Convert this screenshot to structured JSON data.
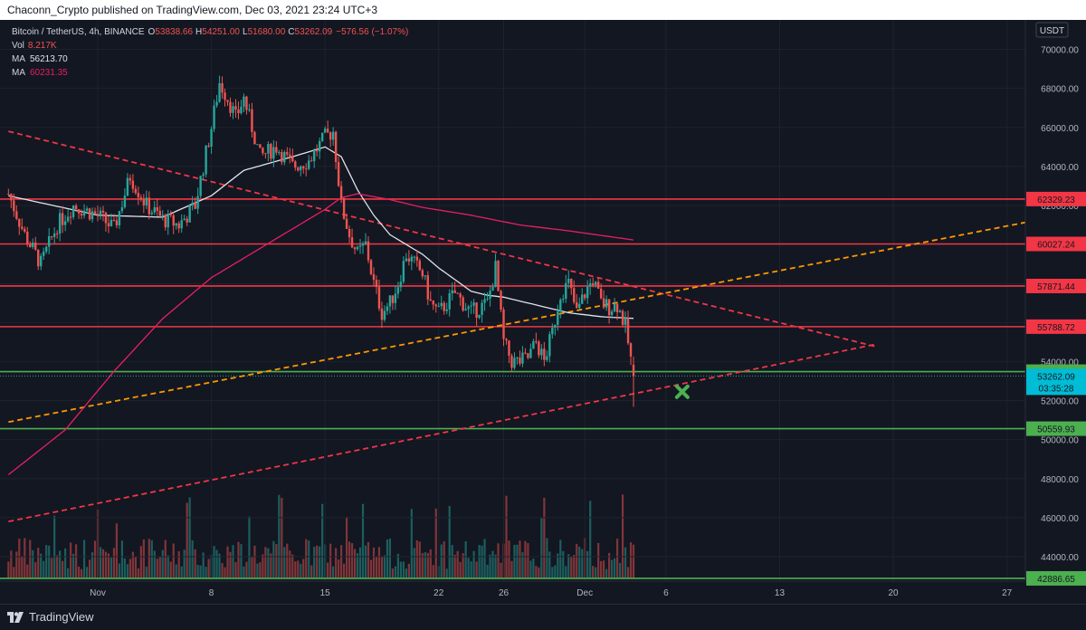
{
  "header": {
    "publisher_text": "Chaconn_Crypto published on TradingView.com, Dec 03, 2021 23:24 UTC+3"
  },
  "legend": {
    "symbol": "Bitcoin / TetherUS, 4h, BINANCE",
    "o_label": "O",
    "o_value": "53838.66",
    "h_label": "H",
    "h_value": "54251.00",
    "l_label": "L",
    "l_value": "51680.00",
    "c_label": "C",
    "c_value": "53262.09",
    "change": "−576.56 (−1.07%)",
    "vol_label": "Vol",
    "vol_value": "8.217K",
    "ma1_label": "MA",
    "ma1_value": "56213.70",
    "ma2_label": "MA",
    "ma2_value": "60231.35"
  },
  "currency": "USDT",
  "footer": {
    "brand": "TradingView"
  },
  "colors": {
    "background": "#131722",
    "up": "#26a69a",
    "down": "#ef5350",
    "resistance": "#f23645",
    "support": "#4caf50",
    "orange_trend": "#ff9800",
    "ma_white": "#e0e3eb",
    "ma_pink": "#e91e63",
    "marker": "#4caf50"
  },
  "chart_data": {
    "type": "candlestick",
    "timeframe": "4h",
    "y_range": [
      42500,
      71000
    ],
    "y_ticks": [
      44000,
      46000,
      48000,
      50000,
      52000,
      54000,
      56000,
      58000,
      60000,
      62000,
      64000,
      66000,
      68000,
      70000
    ],
    "y_tick_labels": [
      "44000.00",
      "46000.00",
      "48000.00",
      "50000.00",
      "52000.00",
      "54000.00",
      "56000.00",
      "58000.00",
      "60000.00",
      "62000.00",
      "64000.00",
      "66000.00",
      "68000.00",
      "70000.00"
    ],
    "x_ticks": [
      {
        "label": "Nov",
        "day": 1
      },
      {
        "label": "8",
        "day": 8
      },
      {
        "label": "15",
        "day": 15
      },
      {
        "label": "22",
        "day": 22
      },
      {
        "label": "26",
        "day": 26
      },
      {
        "label": "Dec",
        "day": 31
      },
      {
        "label": "6",
        "day": 36
      },
      {
        "label": "13",
        "day": 43
      },
      {
        "label": "20",
        "day": 50
      },
      {
        "label": "27",
        "day": 57
      }
    ],
    "price_anchors": [
      [
        -4.5,
        62600
      ],
      [
        -3.5,
        60500
      ],
      [
        -2.5,
        59000
      ],
      [
        -1.5,
        61000
      ],
      [
        -0.5,
        62000
      ],
      [
        1,
        61500
      ],
      [
        2,
        60800
      ],
      [
        3,
        63500
      ],
      [
        4,
        62000
      ],
      [
        5,
        61300
      ],
      [
        6,
        61000
      ],
      [
        7,
        62000
      ],
      [
        8,
        66000
      ],
      [
        8.5,
        68300
      ],
      [
        9,
        67500
      ],
      [
        9.5,
        66500
      ],
      [
        10,
        67500
      ],
      [
        10.5,
        66000
      ],
      [
        11,
        64500
      ],
      [
        12,
        65000
      ],
      [
        13,
        64000
      ],
      [
        14,
        64300
      ],
      [
        15,
        65500
      ],
      [
        15.5,
        65800
      ],
      [
        16,
        62000
      ],
      [
        16.5,
        60500
      ],
      [
        17,
        59500
      ],
      [
        17.5,
        60000
      ],
      [
        18,
        58000
      ],
      [
        18.5,
        56500
      ],
      [
        19,
        57000
      ],
      [
        19.5,
        58000
      ],
      [
        20,
        59500
      ],
      [
        21,
        58500
      ],
      [
        21.5,
        57000
      ],
      [
        22,
        56500
      ],
      [
        23,
        57500
      ],
      [
        24,
        56500
      ],
      [
        25,
        57000
      ],
      [
        25.5,
        58800
      ],
      [
        26,
        55000
      ],
      [
        26.5,
        54000
      ],
      [
        27,
        54000
      ],
      [
        27.5,
        54200
      ],
      [
        28,
        55000
      ],
      [
        28.5,
        54000
      ],
      [
        29,
        55500
      ],
      [
        29.5,
        57500
      ],
      [
        30,
        58000
      ],
      [
        30.5,
        56500
      ],
      [
        31,
        57500
      ],
      [
        31.5,
        58200
      ],
      [
        32,
        57000
      ],
      [
        32.5,
        56800
      ],
      [
        33,
        56900
      ],
      [
        33.5,
        55800
      ],
      [
        34,
        53262
      ]
    ],
    "ohlc_last": {
      "open": 53838.66,
      "high": 54251.0,
      "low": 51680.0,
      "close": 53262.09
    },
    "volume_last": "8.217K",
    "series": [
      {
        "name": "MA",
        "type": "line",
        "last_value": 56213.7,
        "anchors": [
          [
            -4.5,
            62500
          ],
          [
            1,
            61500
          ],
          [
            5,
            61400
          ],
          [
            8,
            62500
          ],
          [
            10,
            63800
          ],
          [
            13,
            64500
          ],
          [
            15,
            65000
          ],
          [
            16,
            64500
          ],
          [
            17,
            62800
          ],
          [
            18,
            61500
          ],
          [
            19,
            60500
          ],
          [
            21,
            59500
          ],
          [
            22,
            58800
          ],
          [
            24,
            57600
          ],
          [
            25,
            57400
          ],
          [
            26,
            57300
          ],
          [
            28,
            56900
          ],
          [
            30,
            56500
          ],
          [
            32,
            56300
          ],
          [
            34,
            56213
          ]
        ]
      },
      {
        "name": "MA",
        "type": "line",
        "last_value": 60231.35,
        "anchors": [
          [
            -4.5,
            48200
          ],
          [
            -1,
            50500
          ],
          [
            2,
            53500
          ],
          [
            5,
            56200
          ],
          [
            8,
            58300
          ],
          [
            11,
            59800
          ],
          [
            13,
            60800
          ],
          [
            15,
            61800
          ],
          [
            16,
            62400
          ],
          [
            17,
            62600
          ],
          [
            19,
            62300
          ],
          [
            21,
            61900
          ],
          [
            24,
            61500
          ],
          [
            27,
            61000
          ],
          [
            30,
            60700
          ],
          [
            34,
            60231
          ]
        ]
      }
    ],
    "horizontal_levels": [
      {
        "price": 62329.23,
        "label": "62329.23",
        "color": "#f23645"
      },
      {
        "price": 60027.24,
        "label": "60027.24",
        "color": "#f23645"
      },
      {
        "price": 57871.44,
        "label": "57871.44",
        "color": "#f23645"
      },
      {
        "price": 55788.72,
        "label": "55788.72",
        "color": "#f23645"
      },
      {
        "price": 53482.52,
        "label": "53482.52",
        "color": "#4caf50"
      },
      {
        "price": 50559.93,
        "label": "50559.93",
        "color": "#4caf50"
      },
      {
        "price": 42886.65,
        "label": "42886.65",
        "color": "#4caf50"
      }
    ],
    "current_price": {
      "value": 53262.09,
      "label": "53262.09",
      "countdown": "03:35:28"
    },
    "trendlines": [
      {
        "style": "dashed",
        "color": "#f23645",
        "from": [
          -4.5,
          65800
        ],
        "to": [
          49,
          54750
        ]
      },
      {
        "style": "dashed",
        "color": "#f23645",
        "from": [
          -4.5,
          45800
        ],
        "to": [
          49,
          54900
        ]
      },
      {
        "style": "dashed",
        "color": "#ff9800",
        "from": [
          -4.5,
          50900
        ],
        "to": [
          61,
          61600
        ]
      }
    ],
    "marker": {
      "symbol": "x",
      "day": 37,
      "price": 52450
    }
  }
}
